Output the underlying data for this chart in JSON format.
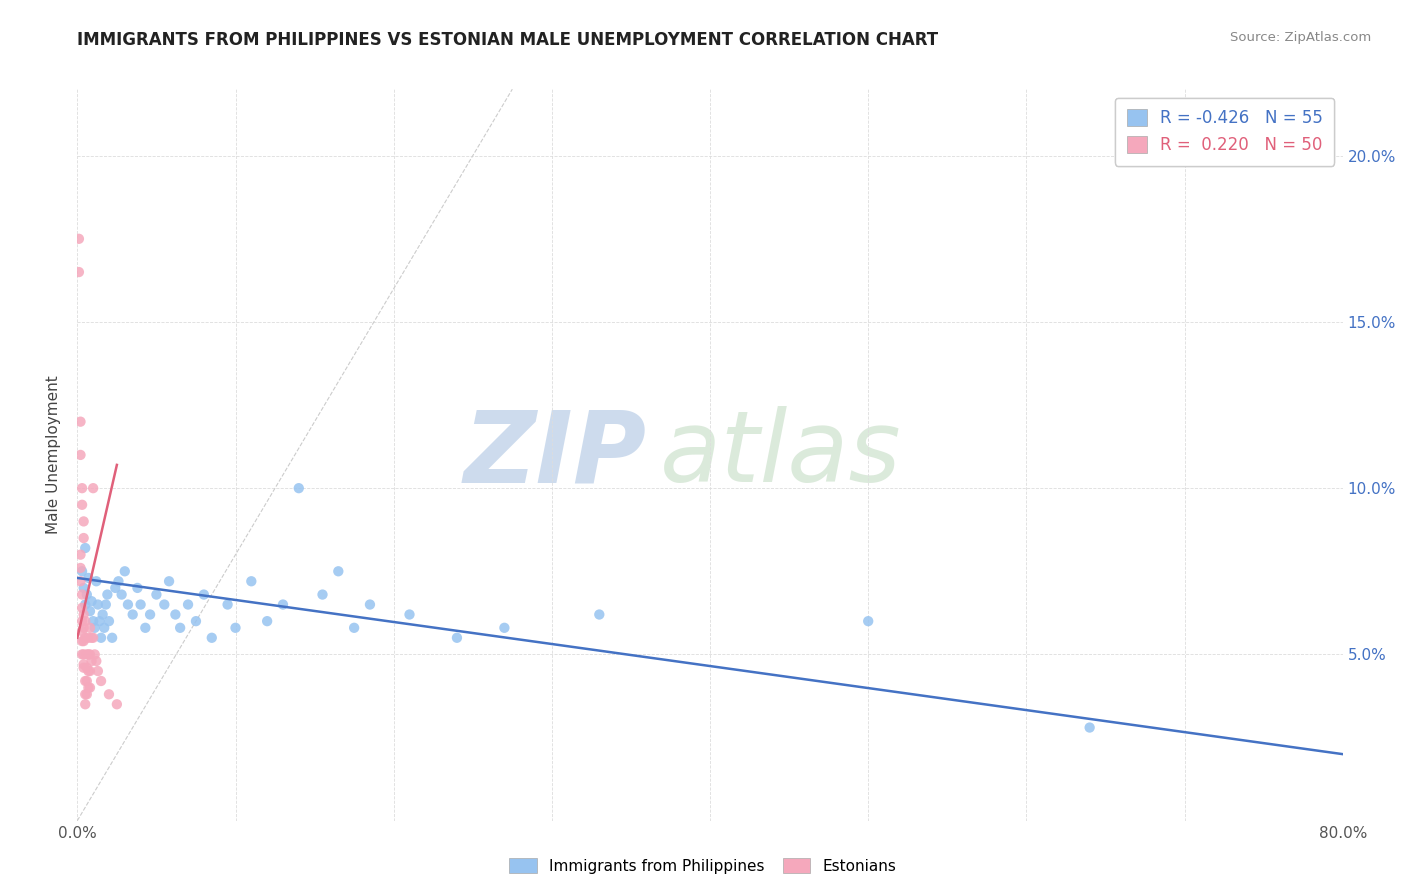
{
  "title": "IMMIGRANTS FROM PHILIPPINES VS ESTONIAN MALE UNEMPLOYMENT CORRELATION CHART",
  "source": "Source: ZipAtlas.com",
  "ylabel": "Male Unemployment",
  "xlim": [
    0.0,
    0.8
  ],
  "ylim": [
    0.0,
    0.22
  ],
  "legend_label_blue": "Immigrants from Philippines",
  "legend_label_pink": "Estonians",
  "R_blue": -0.426,
  "N_blue": 55,
  "R_pink": 0.22,
  "N_pink": 50,
  "blue_color": "#97C3F0",
  "pink_color": "#F5A8BC",
  "blue_line_color": "#4472C4",
  "pink_line_color": "#E0607A",
  "watermark_zip": "ZIP",
  "watermark_atlas": "atlas",
  "blue_scatter": [
    [
      0.003,
      0.075
    ],
    [
      0.004,
      0.07
    ],
    [
      0.005,
      0.065
    ],
    [
      0.005,
      0.082
    ],
    [
      0.006,
      0.068
    ],
    [
      0.007,
      0.073
    ],
    [
      0.008,
      0.063
    ],
    [
      0.009,
      0.066
    ],
    [
      0.01,
      0.06
    ],
    [
      0.011,
      0.058
    ],
    [
      0.012,
      0.072
    ],
    [
      0.013,
      0.065
    ],
    [
      0.014,
      0.06
    ],
    [
      0.015,
      0.055
    ],
    [
      0.016,
      0.062
    ],
    [
      0.017,
      0.058
    ],
    [
      0.018,
      0.065
    ],
    [
      0.019,
      0.068
    ],
    [
      0.02,
      0.06
    ],
    [
      0.022,
      0.055
    ],
    [
      0.024,
      0.07
    ],
    [
      0.026,
      0.072
    ],
    [
      0.028,
      0.068
    ],
    [
      0.03,
      0.075
    ],
    [
      0.032,
      0.065
    ],
    [
      0.035,
      0.062
    ],
    [
      0.038,
      0.07
    ],
    [
      0.04,
      0.065
    ],
    [
      0.043,
      0.058
    ],
    [
      0.046,
      0.062
    ],
    [
      0.05,
      0.068
    ],
    [
      0.055,
      0.065
    ],
    [
      0.058,
      0.072
    ],
    [
      0.062,
      0.062
    ],
    [
      0.065,
      0.058
    ],
    [
      0.07,
      0.065
    ],
    [
      0.075,
      0.06
    ],
    [
      0.08,
      0.068
    ],
    [
      0.085,
      0.055
    ],
    [
      0.095,
      0.065
    ],
    [
      0.1,
      0.058
    ],
    [
      0.11,
      0.072
    ],
    [
      0.12,
      0.06
    ],
    [
      0.13,
      0.065
    ],
    [
      0.14,
      0.1
    ],
    [
      0.155,
      0.068
    ],
    [
      0.165,
      0.075
    ],
    [
      0.175,
      0.058
    ],
    [
      0.185,
      0.065
    ],
    [
      0.21,
      0.062
    ],
    [
      0.24,
      0.055
    ],
    [
      0.27,
      0.058
    ],
    [
      0.33,
      0.062
    ],
    [
      0.5,
      0.06
    ],
    [
      0.64,
      0.028
    ]
  ],
  "pink_scatter": [
    [
      0.001,
      0.175
    ],
    [
      0.001,
      0.165
    ],
    [
      0.002,
      0.12
    ],
    [
      0.002,
      0.11
    ],
    [
      0.003,
      0.1
    ],
    [
      0.003,
      0.095
    ],
    [
      0.004,
      0.09
    ],
    [
      0.004,
      0.085
    ],
    [
      0.002,
      0.08
    ],
    [
      0.002,
      0.076
    ],
    [
      0.002,
      0.072
    ],
    [
      0.003,
      0.068
    ],
    [
      0.003,
      0.064
    ],
    [
      0.003,
      0.06
    ],
    [
      0.003,
      0.057
    ],
    [
      0.003,
      0.054
    ],
    [
      0.003,
      0.05
    ],
    [
      0.004,
      0.047
    ],
    [
      0.004,
      0.062
    ],
    [
      0.004,
      0.058
    ],
    [
      0.004,
      0.054
    ],
    [
      0.004,
      0.05
    ],
    [
      0.004,
      0.046
    ],
    [
      0.005,
      0.042
    ],
    [
      0.005,
      0.038
    ],
    [
      0.005,
      0.035
    ],
    [
      0.005,
      0.06
    ],
    [
      0.005,
      0.055
    ],
    [
      0.006,
      0.05
    ],
    [
      0.006,
      0.046
    ],
    [
      0.006,
      0.042
    ],
    [
      0.006,
      0.038
    ],
    [
      0.007,
      0.055
    ],
    [
      0.007,
      0.05
    ],
    [
      0.007,
      0.045
    ],
    [
      0.007,
      0.04
    ],
    [
      0.008,
      0.058
    ],
    [
      0.008,
      0.05
    ],
    [
      0.008,
      0.045
    ],
    [
      0.008,
      0.04
    ],
    [
      0.009,
      0.055
    ],
    [
      0.009,
      0.048
    ],
    [
      0.01,
      0.055
    ],
    [
      0.01,
      0.1
    ],
    [
      0.011,
      0.05
    ],
    [
      0.012,
      0.048
    ],
    [
      0.013,
      0.045
    ],
    [
      0.015,
      0.042
    ],
    [
      0.02,
      0.038
    ],
    [
      0.025,
      0.035
    ]
  ],
  "blue_trend": [
    0.0,
    0.073,
    0.8,
    0.02
  ],
  "pink_trend": [
    0.0,
    0.055,
    0.025,
    0.107
  ],
  "diag_line": [
    0.0,
    0.0,
    0.275,
    0.22
  ]
}
